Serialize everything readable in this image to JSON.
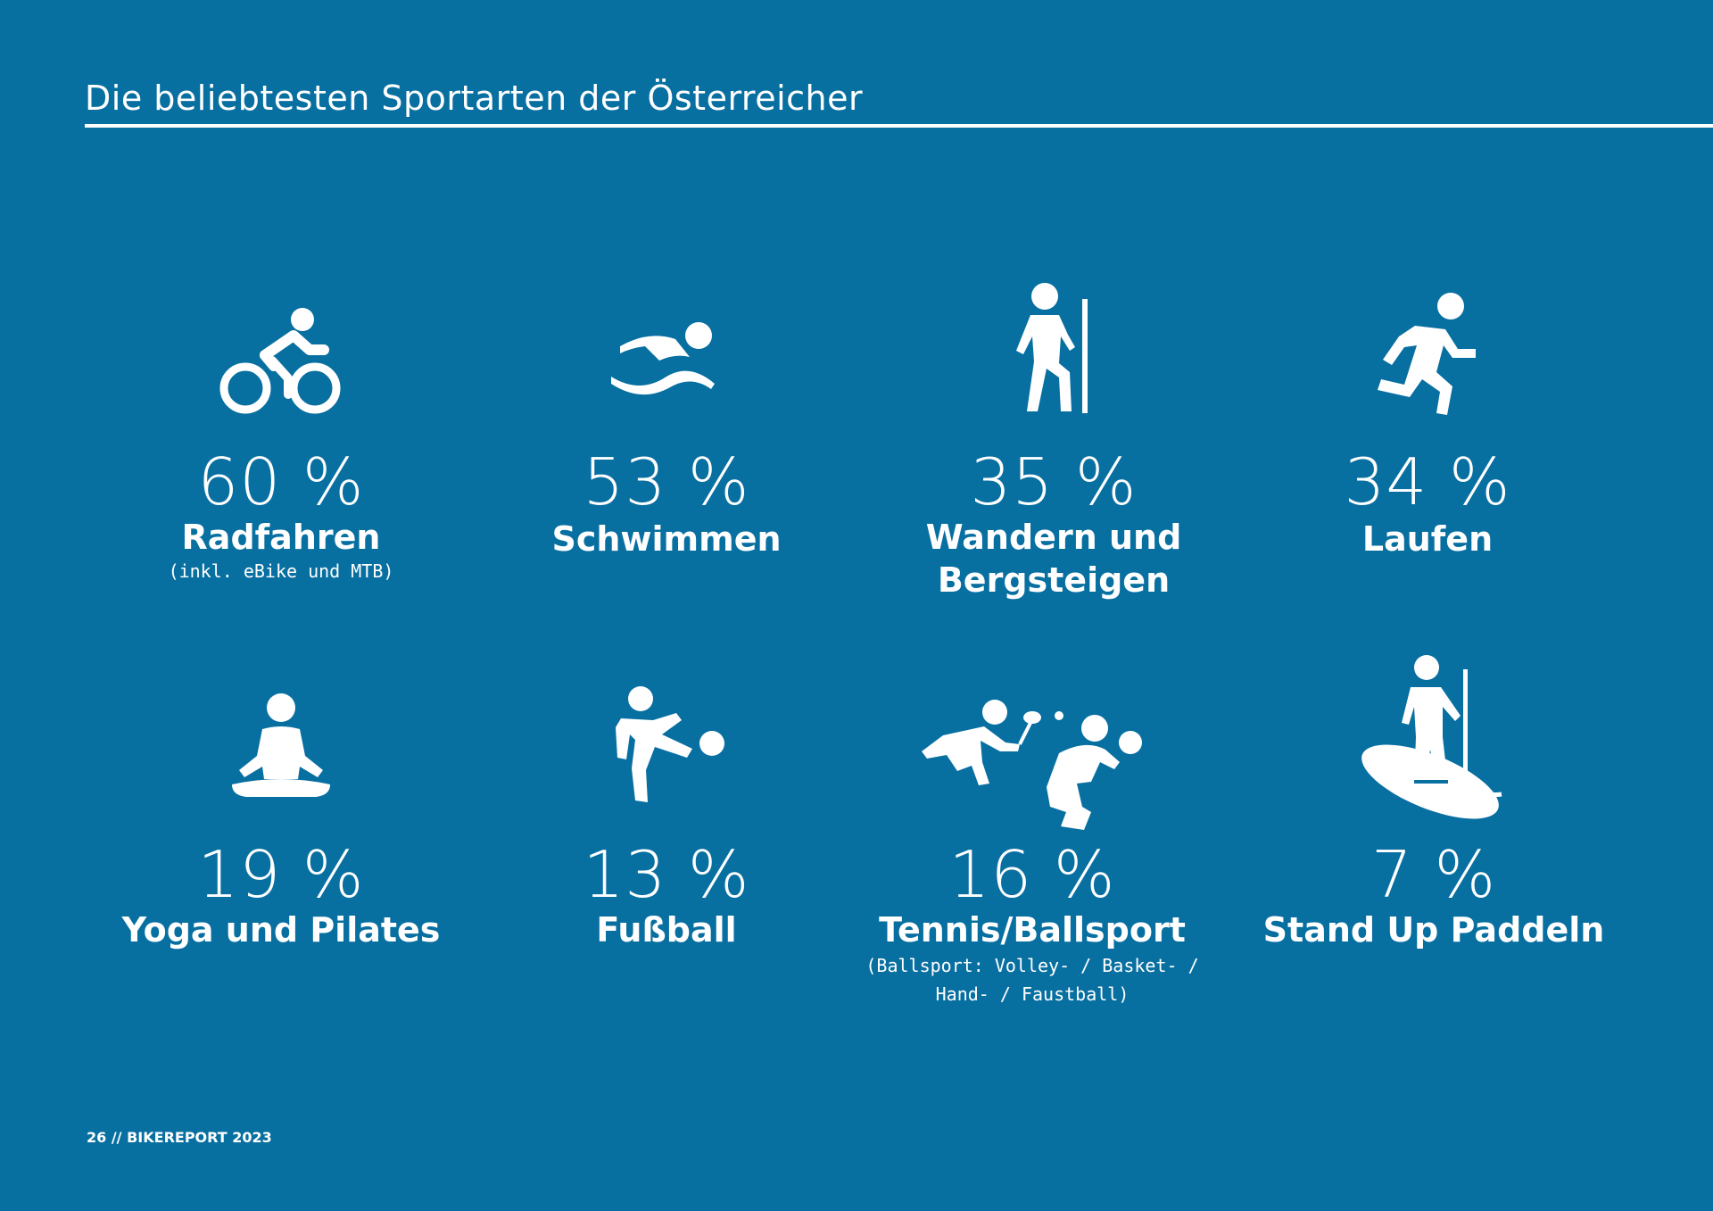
{
  "page_title": "Die beliebtesten Sportarten der Österreicher",
  "colors": {
    "background": "#086fa1",
    "foreground": "#ffffff"
  },
  "sports": [
    {
      "icon": "cyclist-icon",
      "percent": "60 %",
      "name": "Radfahren",
      "note": "(inkl. eBike und MTB)"
    },
    {
      "icon": "swimmer-icon",
      "percent": "53 %",
      "name": "Schwimmen"
    },
    {
      "icon": "hiker-icon",
      "percent": "35 %",
      "name_line1": "Wandern und",
      "name_line2": "Bergsteigen"
    },
    {
      "icon": "runner-icon",
      "percent": "34 %",
      "name": "Laufen"
    },
    {
      "icon": "yoga-icon",
      "percent": "19 %",
      "name": "Yoga und Pilates"
    },
    {
      "icon": "football-icon",
      "percent": "13 %",
      "name": "Fußball"
    },
    {
      "icon": "ballsport-icon",
      "percent": "16 %",
      "name": "Tennis/Ballsport",
      "note_line1": "(Ballsport: Volley- / Basket- /",
      "note_line2": "Hand- / Faustball)"
    },
    {
      "icon": "paddleboard-icon",
      "percent": "7 %",
      "name": "Stand Up Paddeln"
    }
  ],
  "footer": "26 // BIKEREPORT 2023"
}
